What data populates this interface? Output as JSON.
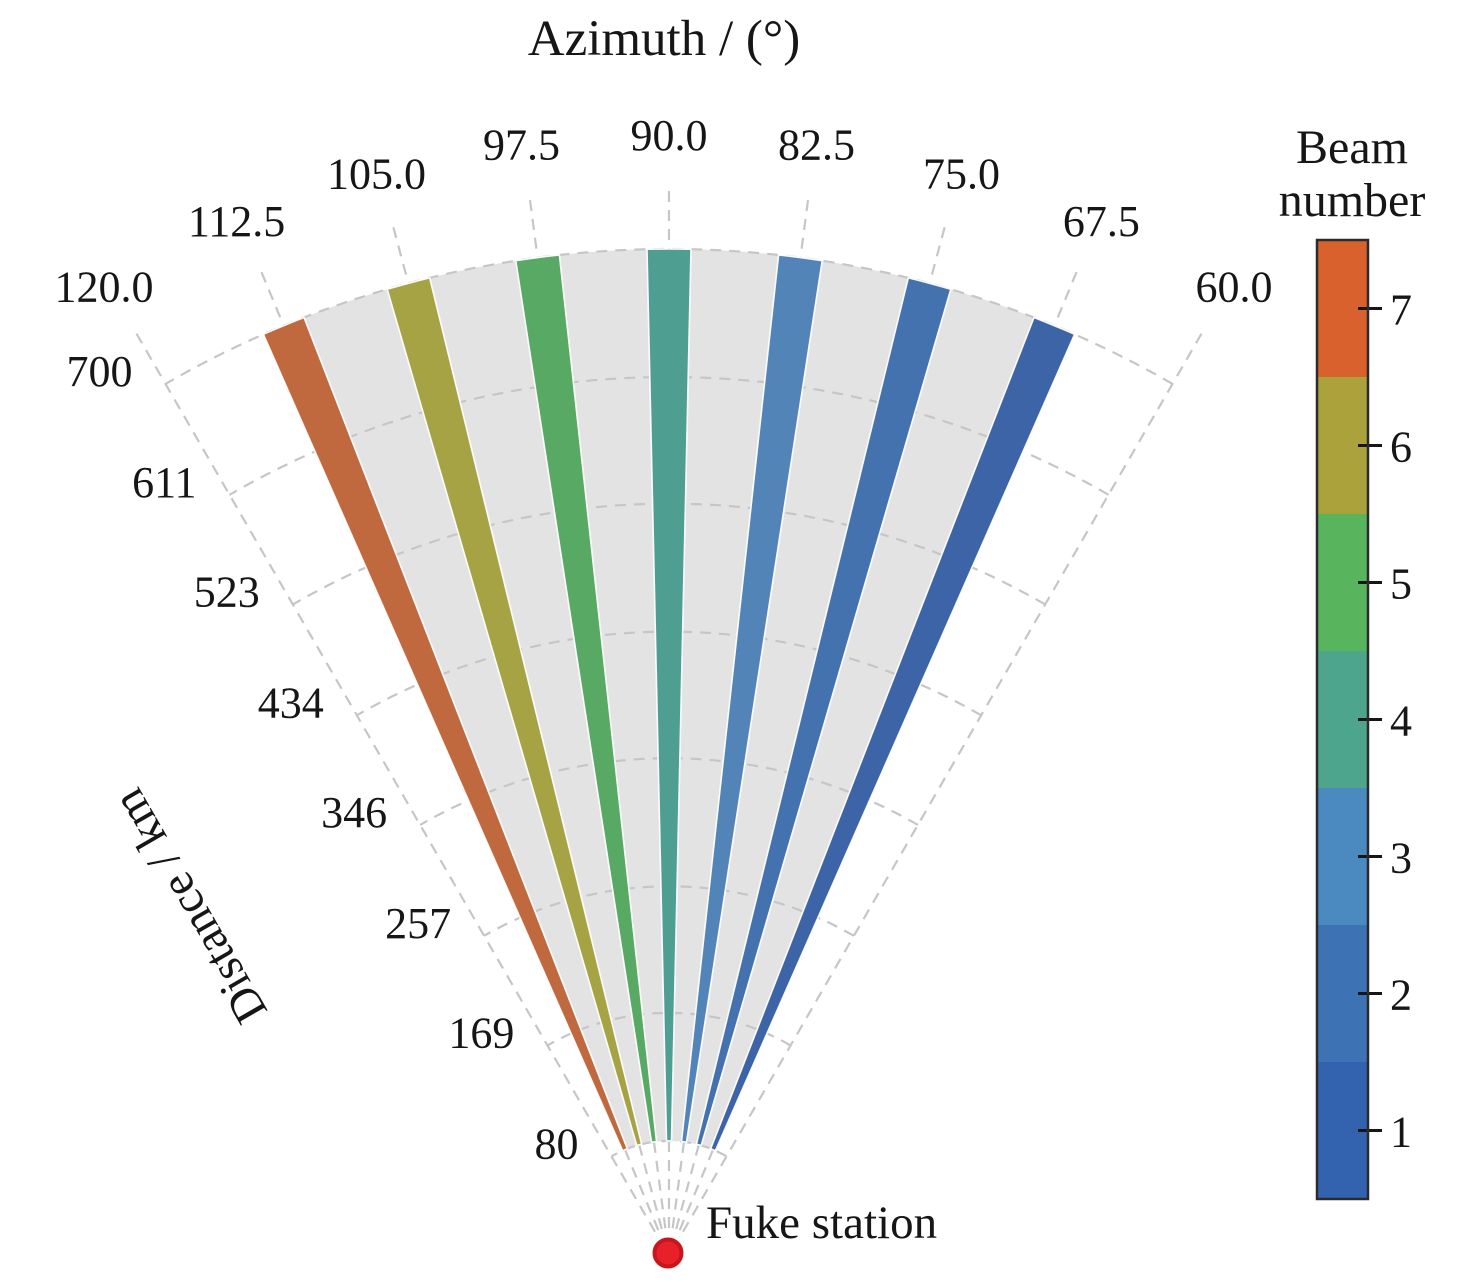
{
  "chart_data": {
    "type": "polar-fan",
    "title": "Azimuth / (°)",
    "station": {
      "label": "Fuke station",
      "dot_color": "#e8202a",
      "dot_edge_color": "#c8151e"
    },
    "angular_axis": {
      "label": "Azimuth / (°)",
      "range": [
        60,
        120
      ],
      "tick_values": [
        120,
        112.5,
        105,
        97.5,
        90,
        82.5,
        75,
        67.5,
        60
      ],
      "tick_labels": [
        "120.0",
        "112.5",
        "105.0",
        "97.5",
        "90.0",
        "82.5",
        "75.0",
        "67.5",
        "60.0"
      ]
    },
    "radial_axis": {
      "label": "Distance / km",
      "range_km": [
        80,
        700
      ],
      "tick_values": [
        700,
        611,
        523,
        434,
        346,
        257,
        169,
        80
      ],
      "tick_labels": [
        "700",
        "611",
        "523",
        "434",
        "346",
        "257",
        "169",
        "80"
      ]
    },
    "sector": {
      "azimuth_min": 66.25,
      "azimuth_max": 113.75,
      "r_min_km": 80,
      "r_max_km": 700,
      "fill": "#e3e3e3"
    },
    "beam_width_deg": 2.5,
    "grid_color": "#c6c6c6",
    "beams": [
      {
        "number": 1,
        "azimuth_deg": 67.5,
        "color": "#3c64a6"
      },
      {
        "number": 2,
        "azimuth_deg": 75.0,
        "color": "#4372ae"
      },
      {
        "number": 3,
        "azimuth_deg": 82.5,
        "color": "#5384b7"
      },
      {
        "number": 4,
        "azimuth_deg": 90.0,
        "color": "#4f9e92"
      },
      {
        "number": 5,
        "azimuth_deg": 97.5,
        "color": "#58a963"
      },
      {
        "number": 6,
        "azimuth_deg": 105.0,
        "color": "#a6a344"
      },
      {
        "number": 7,
        "azimuth_deg": 112.5,
        "color": "#c0693f"
      }
    ],
    "colorbar": {
      "title": "Beam number",
      "title_lines": [
        "Beam",
        "number"
      ],
      "ticks": [
        {
          "label": "7",
          "color": "#d8612d"
        },
        {
          "label": "6",
          "color": "#aba23c"
        },
        {
          "label": "5",
          "color": "#58b55e"
        },
        {
          "label": "4",
          "color": "#4da58d"
        },
        {
          "label": "3",
          "color": "#4b8ac1"
        },
        {
          "label": "2",
          "color": "#3d72b4"
        },
        {
          "label": "1",
          "color": "#3362ae"
        }
      ]
    }
  }
}
